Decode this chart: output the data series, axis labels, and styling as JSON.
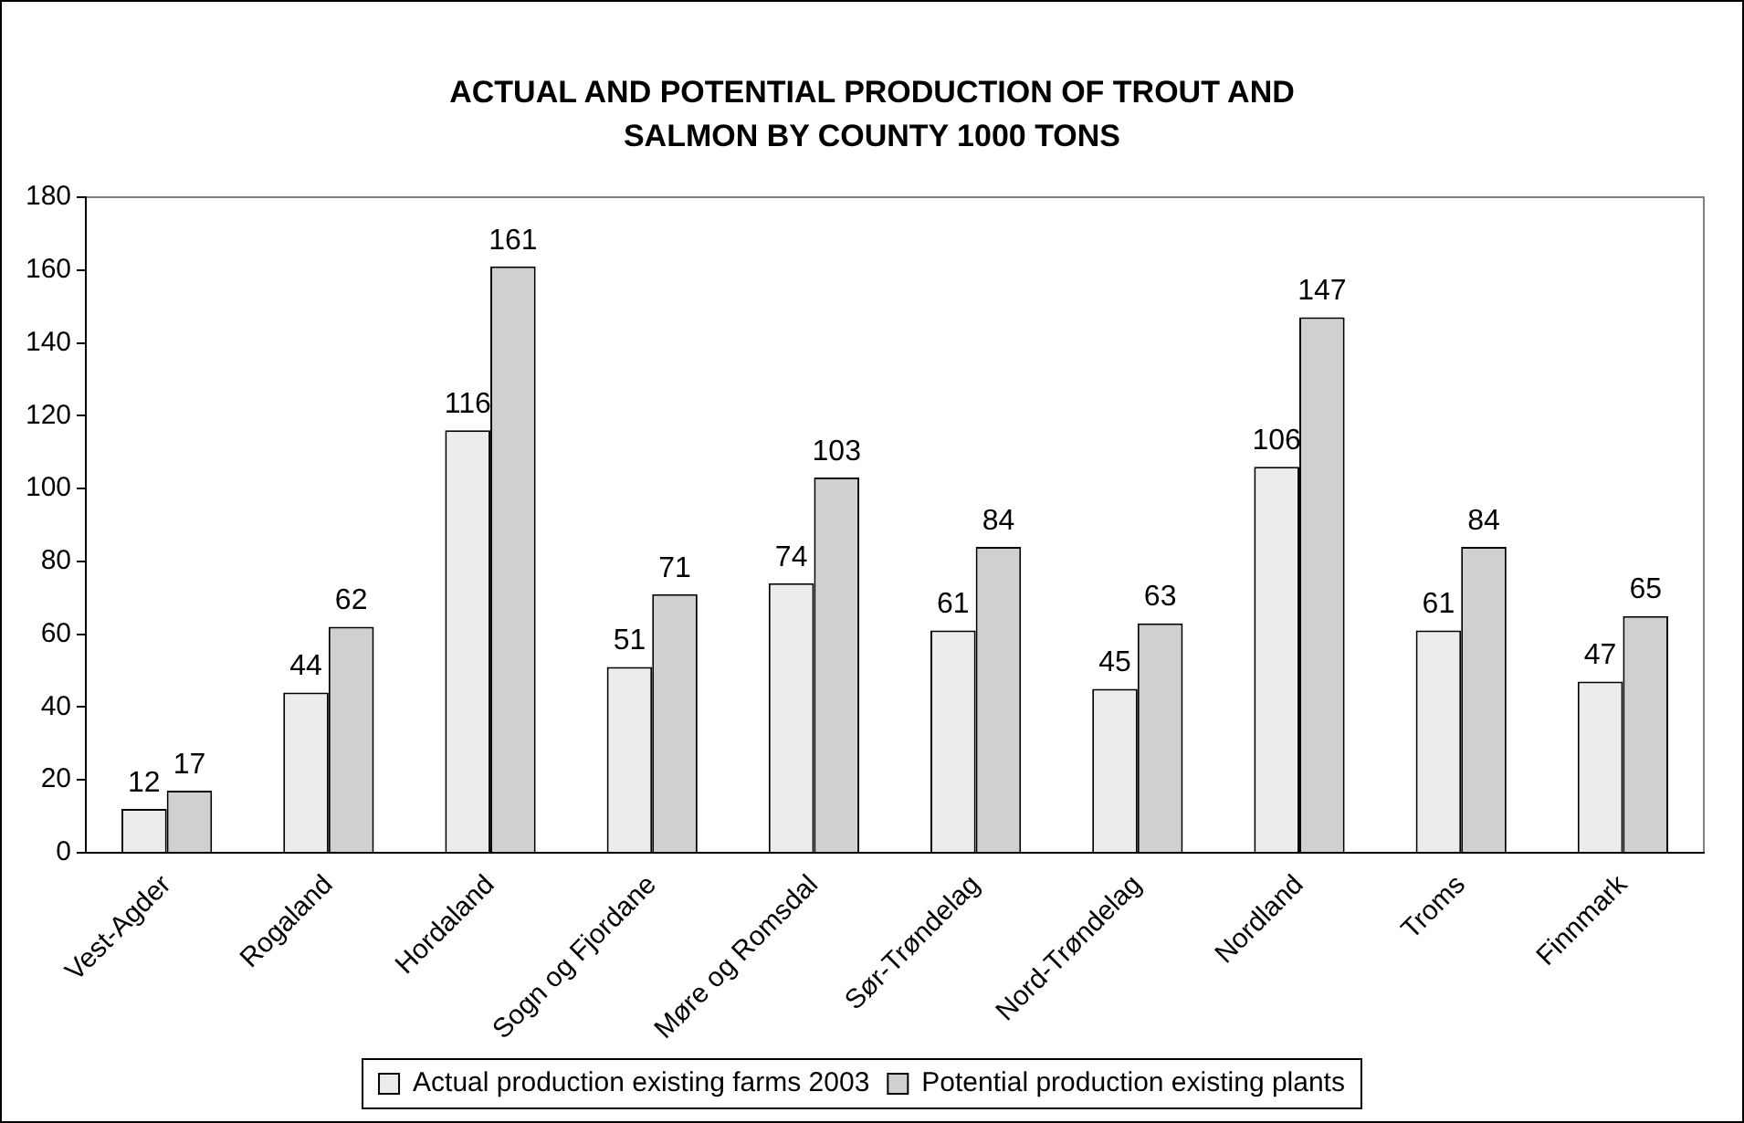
{
  "chart_data": {
    "type": "bar",
    "title": "ACTUAL AND POTENTIAL PRODUCTION OF TROUT AND SALMON BY COUNTY 1000 TONS",
    "categories": [
      "Vest-Agder",
      "Rogaland",
      "Hordaland",
      "Sogn og Fjordane",
      "Møre og Romsdal",
      "Sør-Trøndelag",
      "Nord-Trøndelag",
      "Nordland",
      "Troms",
      "Finnmark"
    ],
    "series": [
      {
        "name": "Actual production existing farms 2003",
        "color": "#ececec",
        "values": [
          12,
          44,
          116,
          51,
          74,
          61,
          45,
          106,
          61,
          47
        ]
      },
      {
        "name": "Potential production existing plants",
        "color": "#d0d0d0",
        "values": [
          17,
          62,
          161,
          71,
          103,
          84,
          63,
          147,
          84,
          65
        ]
      }
    ],
    "ylim": [
      0,
      180
    ],
    "yticks": [
      0,
      20,
      40,
      60,
      80,
      100,
      120,
      140,
      160,
      180
    ],
    "grid": false,
    "legend": "bottom",
    "data_labels": true
  }
}
